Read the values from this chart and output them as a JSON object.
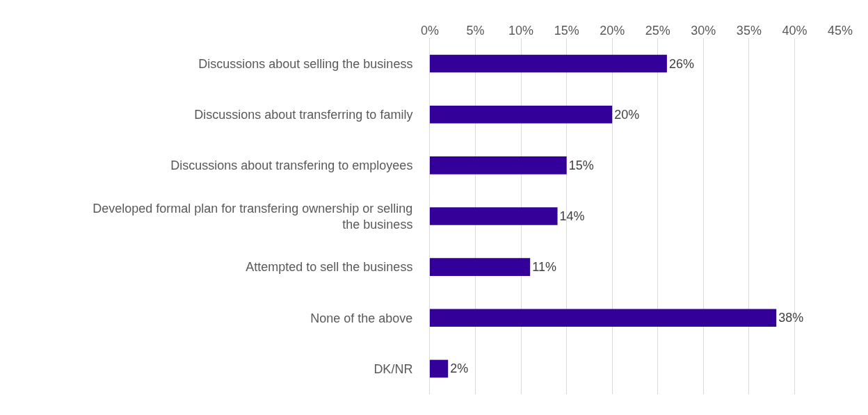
{
  "chart_data": {
    "type": "bar",
    "orientation": "horizontal",
    "categories": [
      "Discussions about selling the business",
      "Discussions about transferring to family",
      "Discussions about transfering to employees",
      "Developed formal plan for transfering ownership or selling the business",
      "Attempted to sell the business",
      "None of the above",
      "DK/NR"
    ],
    "values": [
      26,
      20,
      15,
      14,
      11,
      38,
      2
    ],
    "value_labels": [
      "26%",
      "20%",
      "15%",
      "14%",
      "11%",
      "38%",
      "2%"
    ],
    "color": "#330099",
    "xlim": [
      0,
      45
    ],
    "xticks": [
      {
        "value": 0,
        "label": "0%"
      },
      {
        "value": 5,
        "label": "5%"
      },
      {
        "value": 10,
        "label": "10%"
      },
      {
        "value": 15,
        "label": "15%"
      },
      {
        "value": 20,
        "label": "20%"
      },
      {
        "value": 25,
        "label": "25%"
      },
      {
        "value": 30,
        "label": "30%"
      },
      {
        "value": 35,
        "label": "35%"
      },
      {
        "value": 40,
        "label": "40%"
      },
      {
        "value": 45,
        "label": "45%"
      }
    ],
    "grid": "x",
    "legend": false
  }
}
